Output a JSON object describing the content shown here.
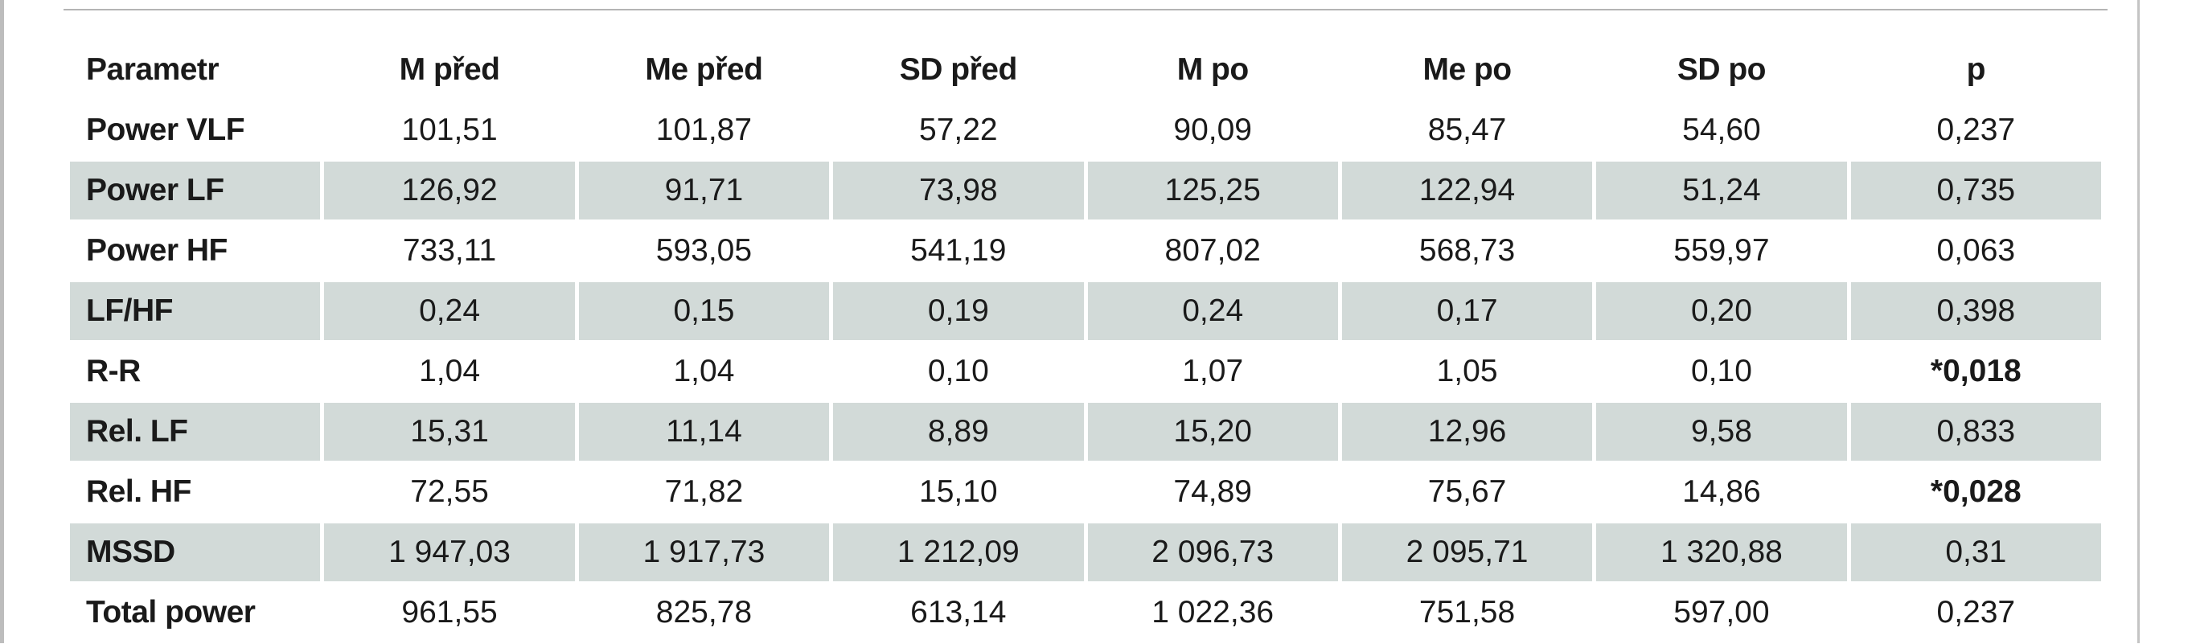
{
  "table": {
    "headers": [
      "Parametr",
      "M před",
      "Me před",
      "SD před",
      "M po",
      "Me po",
      "SD po",
      "p"
    ],
    "rows": [
      {
        "cells": [
          "Power VLF",
          "101,51",
          "101,87",
          "57,22",
          "90,09",
          "85,47",
          "54,60",
          "0,237"
        ],
        "shaded": false,
        "p_significant": false
      },
      {
        "cells": [
          "Power LF",
          "126,92",
          "91,71",
          "73,98",
          "125,25",
          "122,94",
          "51,24",
          "0,735"
        ],
        "shaded": true,
        "p_significant": false
      },
      {
        "cells": [
          "Power HF",
          "733,11",
          "593,05",
          "541,19",
          "807,02",
          "568,73",
          "559,97",
          "0,063"
        ],
        "shaded": false,
        "p_significant": false
      },
      {
        "cells": [
          "LF/HF",
          "0,24",
          "0,15",
          "0,19",
          "0,24",
          "0,17",
          "0,20",
          "0,398"
        ],
        "shaded": true,
        "p_significant": false
      },
      {
        "cells": [
          "R-R",
          "1,04",
          "1,04",
          "0,10",
          "1,07",
          "1,05",
          "0,10",
          "*0,018"
        ],
        "shaded": false,
        "p_significant": true
      },
      {
        "cells": [
          "Rel. LF",
          "15,31",
          "11,14",
          "8,89",
          "15,20",
          "12,96",
          "9,58",
          "0,833"
        ],
        "shaded": true,
        "p_significant": false
      },
      {
        "cells": [
          "Rel. HF",
          "72,55",
          "71,82",
          "15,10",
          "74,89",
          "75,67",
          "14,86",
          "*0,028"
        ],
        "shaded": false,
        "p_significant": true
      },
      {
        "cells": [
          "MSSD",
          "1 947,03",
          "1 917,73",
          "1 212,09",
          "2 096,73",
          "2 095,71",
          "1 320,88",
          "0,31"
        ],
        "shaded": true,
        "p_significant": false
      },
      {
        "cells": [
          "Total power",
          "961,55",
          "825,78",
          "613,14",
          "1 022,36",
          "751,58",
          "597,00",
          "0,237"
        ],
        "shaded": false,
        "p_significant": false
      }
    ],
    "shade_color": "#d2dad8"
  }
}
